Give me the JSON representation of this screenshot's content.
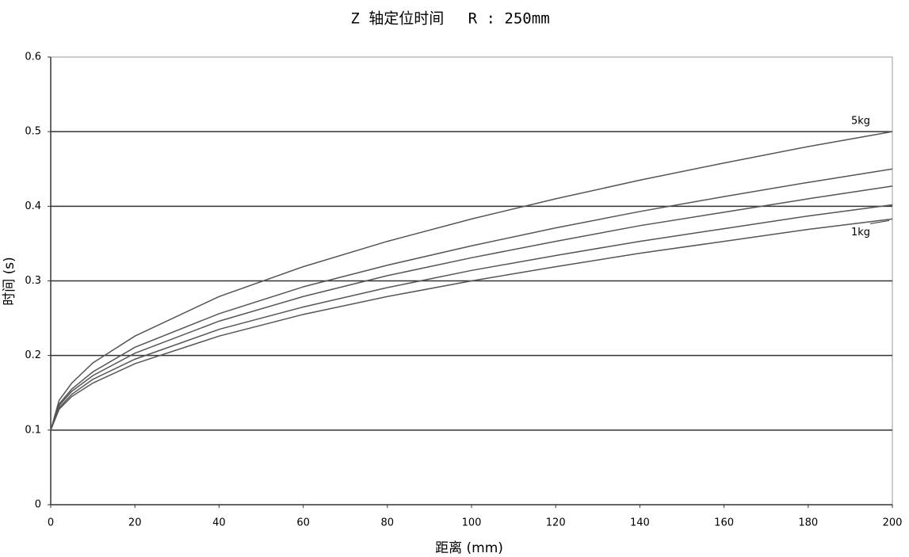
{
  "chart_data": {
    "type": "line",
    "title": "Z 轴定位时间　 R : 250mm",
    "x_label": "距离 (mm)",
    "y_label": "时间 (s)",
    "x": [
      0,
      2,
      5,
      10,
      20,
      40,
      60,
      80,
      100,
      120,
      140,
      160,
      180,
      200
    ],
    "series": [
      {
        "name": "5kg",
        "color": "#555555",
        "values": [
          0.1,
          0.14,
          0.163,
          0.19,
          0.226,
          0.279,
          0.319,
          0.353,
          0.383,
          0.41,
          0.435,
          0.458,
          0.48,
          0.5
        ]
      },
      {
        "color": "#555555",
        "values": [
          0.1,
          0.135,
          0.155,
          0.178,
          0.211,
          0.256,
          0.292,
          0.321,
          0.347,
          0.371,
          0.393,
          0.413,
          0.432,
          0.45
        ]
      },
      {
        "color": "#555555",
        "values": [
          0.1,
          0.133,
          0.152,
          0.173,
          0.203,
          0.246,
          0.279,
          0.307,
          0.331,
          0.353,
          0.374,
          0.392,
          0.41,
          0.427
        ]
      },
      {
        "color": "#555555",
        "values": [
          0.1,
          0.13,
          0.148,
          0.168,
          0.195,
          0.235,
          0.265,
          0.291,
          0.314,
          0.334,
          0.353,
          0.37,
          0.387,
          0.402
        ]
      },
      {
        "name": "1kg",
        "color": "#555555",
        "values": [
          0.1,
          0.128,
          0.145,
          0.163,
          0.189,
          0.226,
          0.255,
          0.279,
          0.3,
          0.319,
          0.337,
          0.353,
          0.369,
          0.383
        ]
      }
    ],
    "xlim": [
      0,
      200
    ],
    "xticks": [
      0,
      20,
      40,
      60,
      80,
      100,
      120,
      140,
      160,
      180,
      200
    ],
    "ylim": [
      0,
      0.6
    ],
    "yticks": [
      0,
      0.1,
      0.2,
      0.3,
      0.4,
      0.5,
      0.6
    ],
    "grid": true
  }
}
